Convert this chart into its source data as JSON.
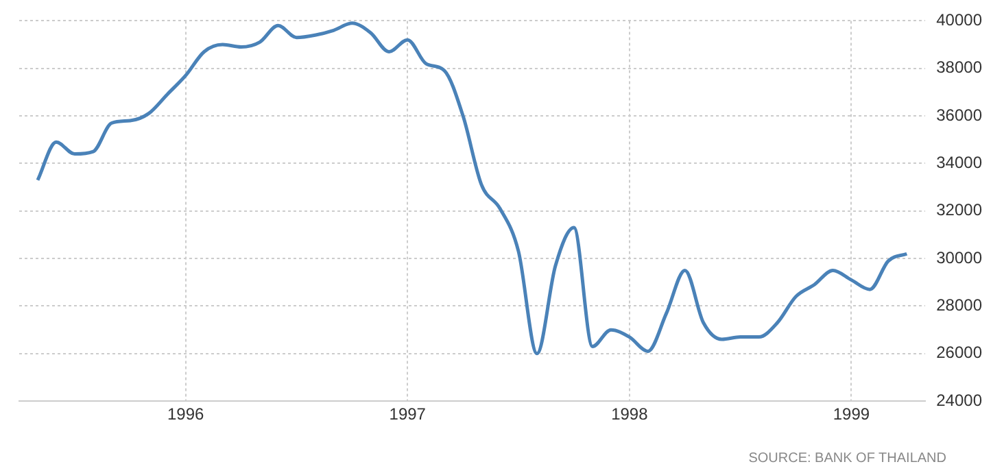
{
  "chart_data": {
    "type": "line",
    "x": [
      "1995-05",
      "1995-06",
      "1995-07",
      "1995-08",
      "1995-09",
      "1995-10",
      "1995-11",
      "1995-12",
      "1996-01",
      "1996-02",
      "1996-03",
      "1996-04",
      "1996-05",
      "1996-06",
      "1996-07",
      "1996-08",
      "1996-09",
      "1996-10",
      "1996-11",
      "1996-12",
      "1997-01",
      "1997-02",
      "1997-03",
      "1997-04",
      "1997-05",
      "1997-06",
      "1997-07",
      "1997-08",
      "1997-09",
      "1997-10",
      "1997-11",
      "1997-12",
      "1998-01",
      "1998-02",
      "1998-03",
      "1998-04",
      "1998-05",
      "1998-06",
      "1998-07",
      "1998-08",
      "1998-09",
      "1998-10",
      "1998-11",
      "1998-12",
      "1999-01",
      "1999-02",
      "1999-03",
      "1999-04"
    ],
    "series": [
      {
        "color": "#4a82b8",
        "values": [
          33300,
          34900,
          34400,
          34500,
          35700,
          35800,
          36100,
          36900,
          37700,
          38700,
          39000,
          38900,
          39100,
          39800,
          39300,
          39400,
          39600,
          39900,
          39500,
          38700,
          39200,
          38200,
          37900,
          36000,
          33100,
          32100,
          30300,
          26000,
          29700,
          31300,
          26300,
          27000,
          26700,
          26100,
          27700,
          29500,
          27300,
          26600,
          26700,
          26700,
          27300,
          28400,
          28900,
          29500,
          29100,
          28700,
          29900,
          30200
        ]
      }
    ],
    "xlim": [
      "1995-04",
      "1999-05"
    ],
    "xticks": [
      {
        "value": "1996-01",
        "label": "1996"
      },
      {
        "value": "1997-01",
        "label": "1997"
      },
      {
        "value": "1998-01",
        "label": "1998"
      },
      {
        "value": "1999-01",
        "label": "1999"
      }
    ],
    "ylim": [
      24000,
      40000
    ],
    "yticks": [
      24000,
      26000,
      28000,
      30000,
      32000,
      34000,
      36000,
      38000,
      40000
    ],
    "grid": true,
    "legend": false,
    "marker": "none",
    "line_style": "solid",
    "annotations": [
      "SOURCE: BANK OF THAILAND"
    ]
  }
}
